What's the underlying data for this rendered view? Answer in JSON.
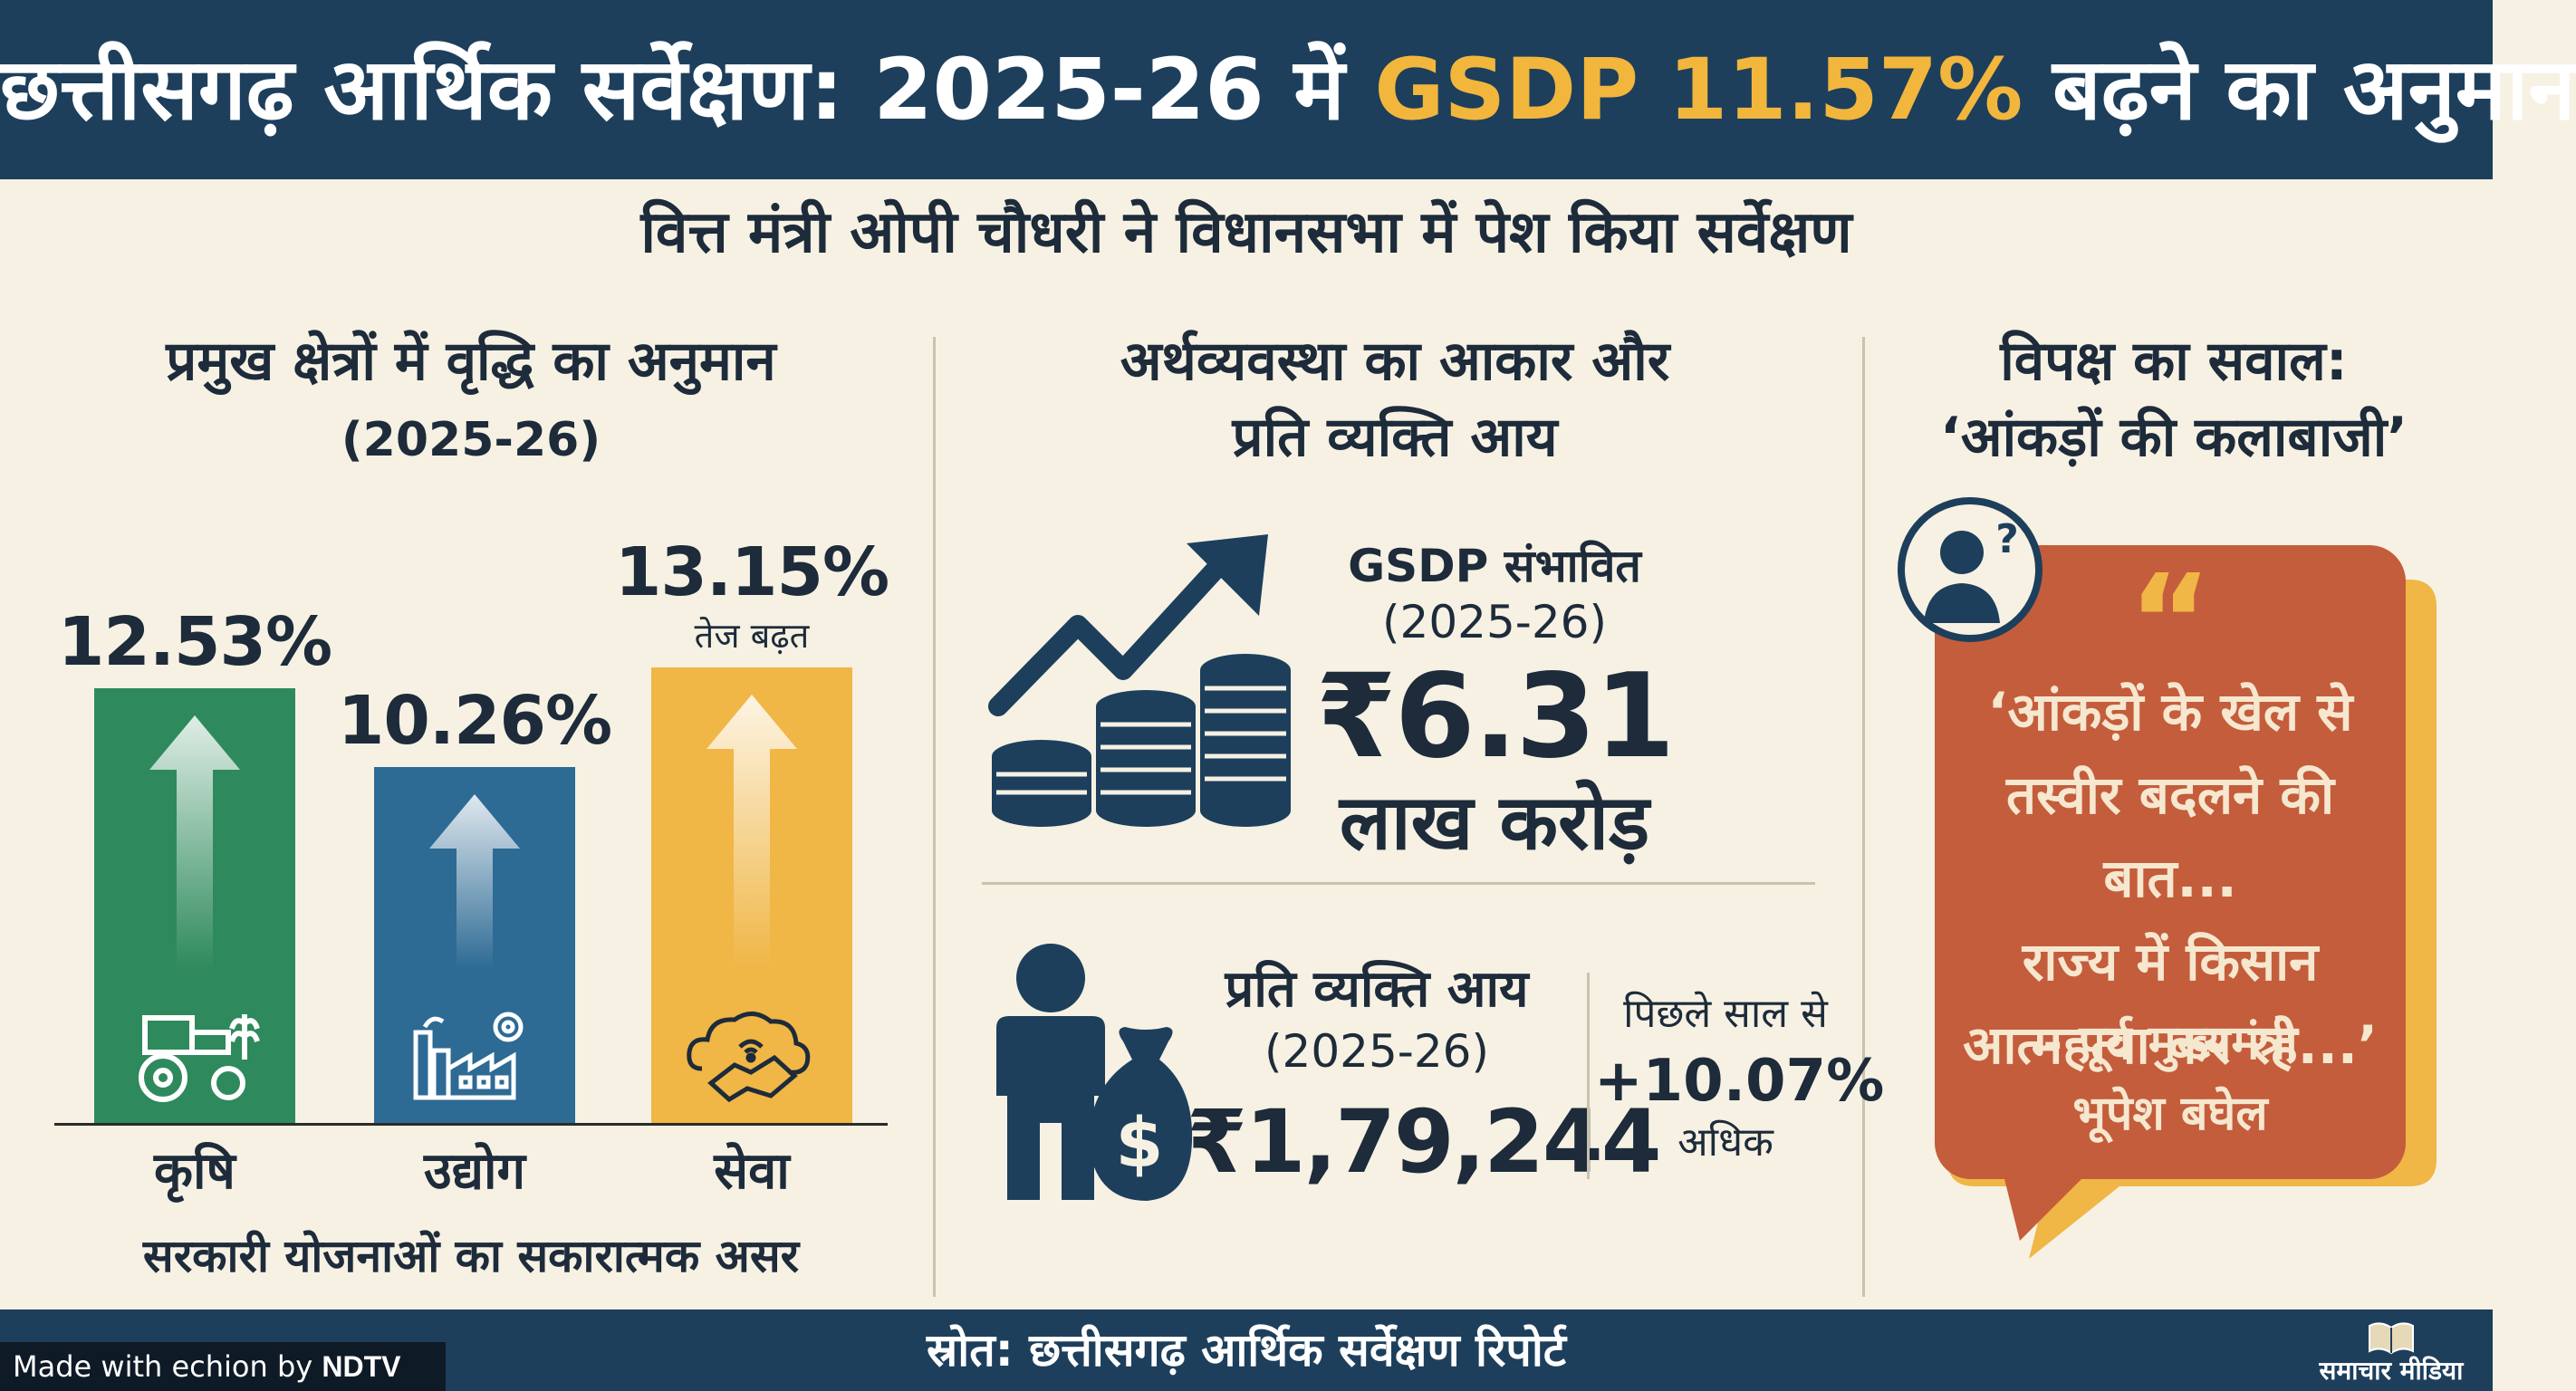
{
  "header": {
    "title_pre": "छत्तीसगढ़ आर्थिक सर्वेक्षण: 2025-26 में ",
    "title_highlight": "GSDP 11.57%",
    "title_post": " बढ़ने का अनुमान"
  },
  "subtitle": "वित्त मंत्री ओपी चौधरी ने विधानसभा में पेश किया सर्वेक्षण",
  "left": {
    "heading": "प्रमुख क्षेत्रों में वृद्धि का अनुमान",
    "year": "(2025-26)",
    "footer_note": "सरकारी योजनाओं का सकारात्मक असर",
    "chart_data": {
      "type": "bar",
      "title": "प्रमुख क्षेत्रों में वृद्धि का अनुमान (2025-26)",
      "categories": [
        "कृषि",
        "उद्योग",
        "सेवा"
      ],
      "values": [
        12.53,
        10.26,
        13.15
      ],
      "value_labels": [
        "12.53%",
        "10.26%",
        "13.15%"
      ],
      "annotations": [
        "",
        "",
        "तेज बढ़त"
      ],
      "colors": [
        "#2e8a5c",
        "#2d6a94",
        "#f0b646"
      ],
      "icons": [
        "tractor-icon",
        "factory-icon",
        "handshake-cloud-icon"
      ],
      "ylabel": "",
      "xlabel": "",
      "ylim": [
        0,
        16
      ]
    }
  },
  "middle": {
    "heading_line1": "अर्थव्यवस्था का आकार और",
    "heading_line2": "प्रति व्यक्ति आय",
    "gsdp_label": "GSDP संभावित",
    "gsdp_year": "(2025-26)",
    "gsdp_value": "₹6.31",
    "gsdp_unit": "लाख करोड़",
    "pci_label": "प्रति व्यक्ति आय",
    "pci_year": "(2025-26)",
    "pci_value": "₹1,79,244",
    "growth_prefix": "पिछले साल से",
    "growth_value": "+10.07%",
    "growth_suffix": "अधिक"
  },
  "right": {
    "heading_line1": "विपक्ष का सवाल:",
    "heading_line2": "‘आंकड़ों की कलाबाजी’",
    "quote_mark": "“",
    "quote_lines": [
      "‘आंकड़ों के खेल से",
      "तस्वीर बदलने की बात...",
      "राज्य में किसान",
      "आत्महत्या कर रहे...’"
    ],
    "attribution_line1": "- पूर्व मुख्यमंत्री",
    "attribution_line2": "भूपेश बघेल"
  },
  "footer": {
    "source": "स्रोत: छत्तीसगढ़ आर्थिक सर्वेक्षण रिपोर्ट",
    "made_with_prefix": "Made with",
    "made_with_tool": "echion",
    "made_with_by": "by",
    "made_with_brand": "NDTV",
    "brand": "समाचार मीडिया"
  },
  "colors": {
    "header_bg": "#1d3f5c",
    "highlight": "#f2b63d",
    "quote_bg": "#c45d3c",
    "bubble_accent": "#f0b646"
  }
}
